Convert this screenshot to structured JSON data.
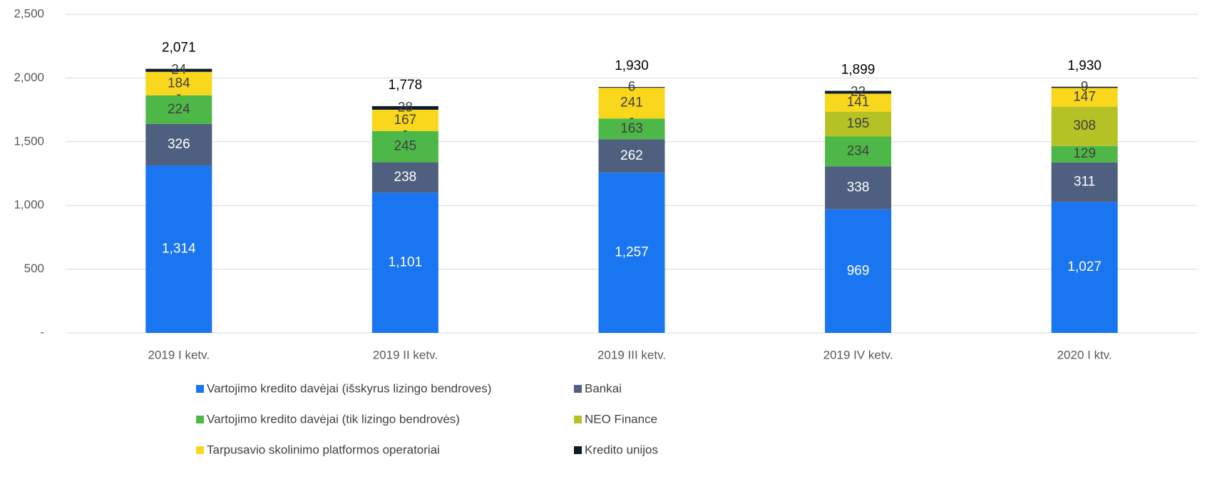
{
  "chart_data": {
    "type": "stacked_bar",
    "categories": [
      "2019 I ketv.",
      "2019 II ketv.",
      "2019 III ketv.",
      "2019 IV ketv.",
      "2020 I ktv."
    ],
    "series": [
      {
        "name": "Vartojimo kredito davėjai (išskyrus lizingo bendroves)",
        "color": "#1a75f0",
        "values": [
          1314,
          1101,
          1257,
          969,
          1027
        ],
        "value_labels": [
          "1,314",
          "1,101",
          "1,257",
          "969",
          "1,027"
        ]
      },
      {
        "name": "Bankai",
        "color": "#4f5f7f",
        "values": [
          326,
          238,
          262,
          338,
          311
        ]
      },
      {
        "name": "Vartojimo kredito davėjai (tik lizingo bendrovės)",
        "color": "#4db848",
        "values": [
          224,
          245,
          163,
          234,
          129
        ]
      },
      {
        "name": "NEO Finance",
        "color": "#b5c225",
        "values": [
          0,
          0,
          0,
          195,
          308
        ],
        "value_labels": [
          "-",
          "-",
          "-",
          "195",
          "308"
        ]
      },
      {
        "name": "Tarpusavio skolinimo platformos operatoriai",
        "color": "#f9d71c",
        "values": [
          184,
          167,
          241,
          141,
          147
        ]
      },
      {
        "name": "Kredito unijos",
        "color": "#0d1b2a",
        "values": [
          24,
          28,
          6,
          22,
          9
        ]
      }
    ],
    "totals": [
      2071,
      1778,
      1930,
      1899,
      1930
    ],
    "total_labels": [
      "2,071",
      "1,778",
      "1,930",
      "1,899",
      "1,930"
    ],
    "ylim": [
      0,
      2500
    ],
    "yticks": [
      {
        "value": 0,
        "label": "-"
      },
      500,
      {
        "value": 1000,
        "label": "1,000"
      },
      {
        "value": 1500,
        "label": "1,500"
      },
      {
        "value": 2000,
        "label": "2,000"
      },
      {
        "value": 2500,
        "label": "2,500"
      }
    ],
    "grid": true
  }
}
